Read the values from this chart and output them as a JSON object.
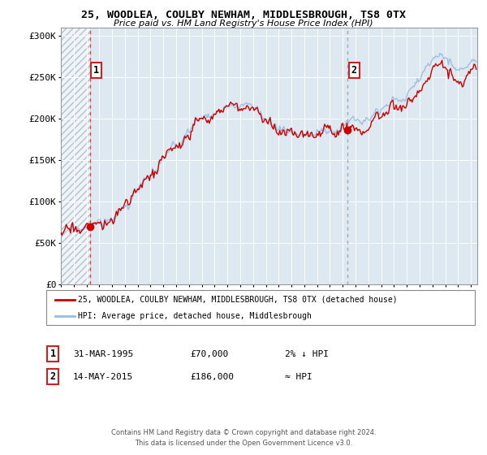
{
  "title": "25, WOODLEA, COULBY NEWHAM, MIDDLESBROUGH, TS8 0TX",
  "subtitle": "Price paid vs. HM Land Registry's House Price Index (HPI)",
  "legend_line1": "25, WOODLEA, COULBY NEWHAM, MIDDLESBROUGH, TS8 0TX (detached house)",
  "legend_line2": "HPI: Average price, detached house, Middlesbrough",
  "point1_date": "31-MAR-1995",
  "point1_price": 70000,
  "point1_hpi_note": "2% ↓ HPI",
  "point1_year": 1995.25,
  "point2_date": "14-MAY-2015",
  "point2_price": 186000,
  "point2_hpi_note": "≈ HPI",
  "point2_year": 2015.37,
  "footer": "Contains HM Land Registry data © Crown copyright and database right 2024.\nThis data is licensed under the Open Government Licence v3.0.",
  "hpi_color": "#99bbdd",
  "price_color": "#cc0000",
  "dashed_color1": "#ee4444",
  "dashed_color2": "#aaaaaa",
  "background_color": "#dde8f0",
  "ylim": [
    0,
    310000
  ],
  "xlim": [
    1993.0,
    2025.5
  ]
}
